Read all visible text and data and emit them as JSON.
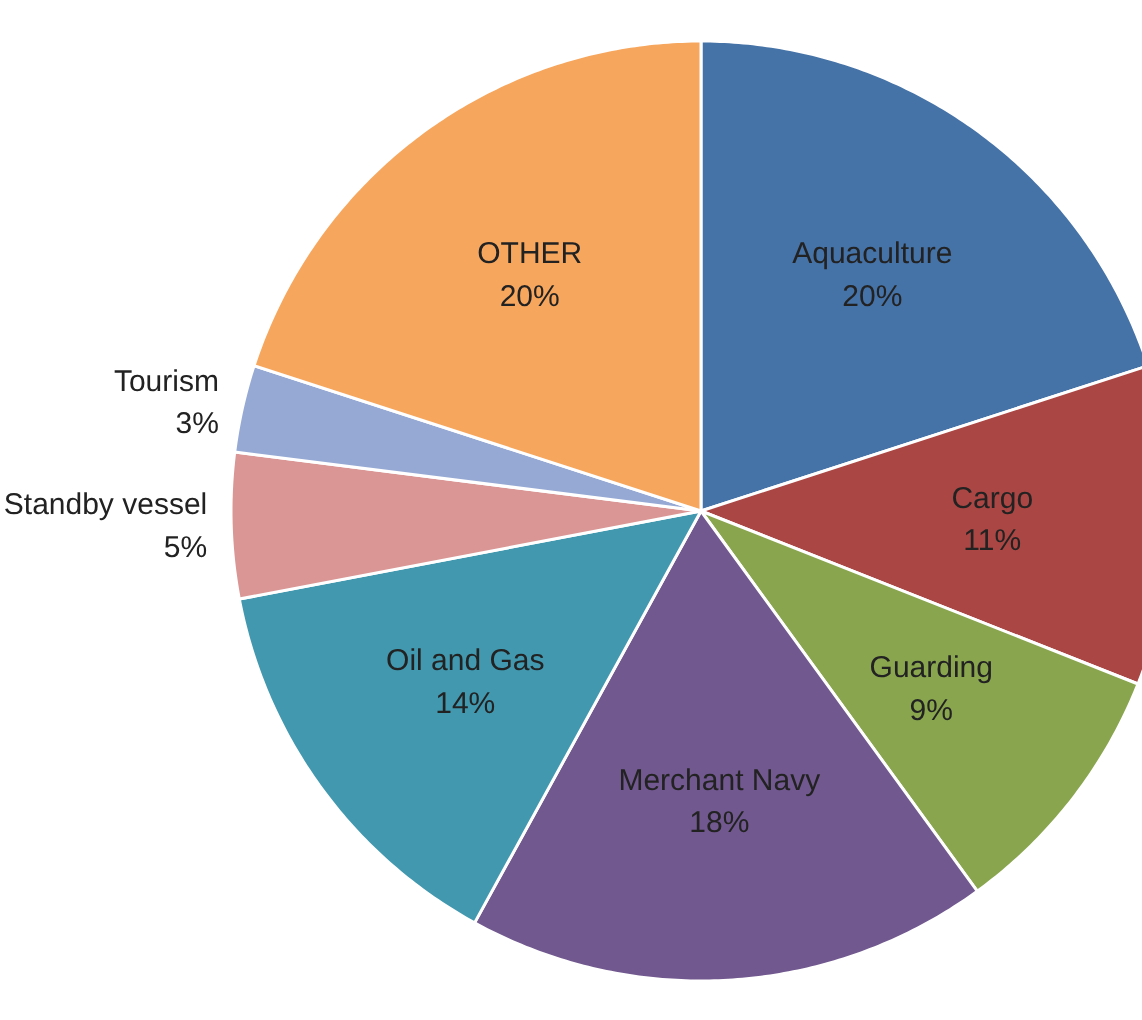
{
  "chart_data": {
    "type": "pie",
    "categories": [
      "Aquaculture",
      "Cargo",
      "Guarding",
      "Merchant Navy",
      "Oil and Gas",
      "Standby vessel",
      "Tourism",
      "OTHER"
    ],
    "values": [
      20,
      11,
      9,
      18,
      14,
      5,
      3,
      20
    ],
    "value_labels": [
      "20%",
      "11%",
      "9%",
      "18%",
      "14%",
      "5%",
      "3%",
      "20%"
    ],
    "colors": [
      "#4572a7",
      "#aa4643",
      "#89a54e",
      "#71588f",
      "#4198af",
      "#d99694",
      "#95a9d4",
      "#f7a65d"
    ]
  }
}
